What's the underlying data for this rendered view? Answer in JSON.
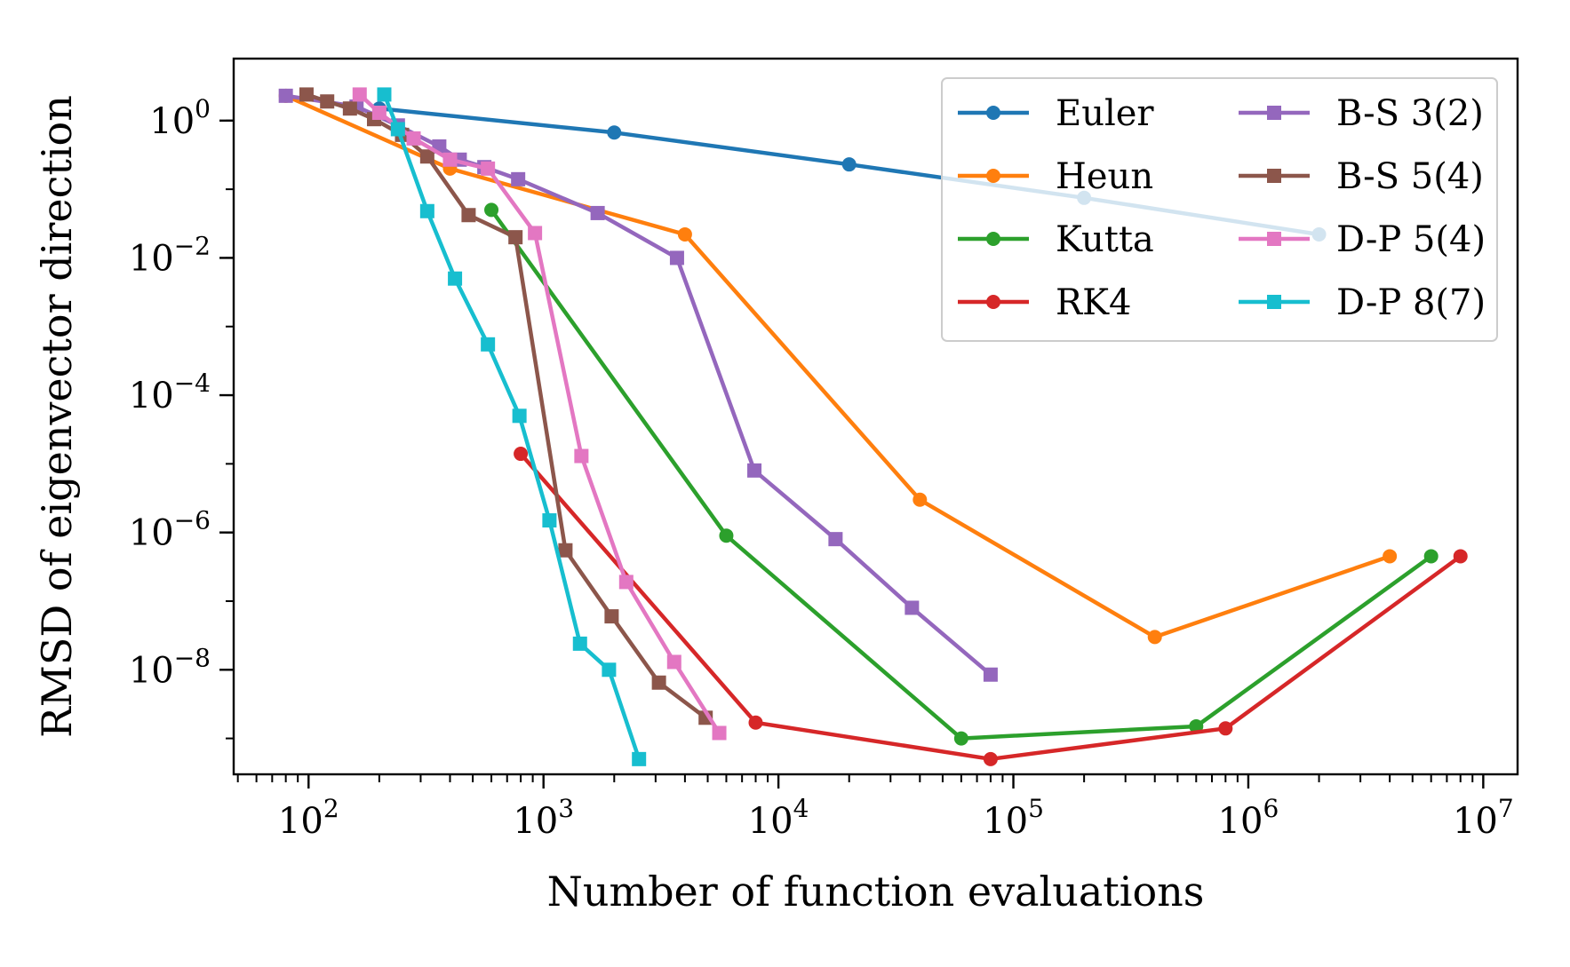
{
  "chart_data": {
    "type": "line",
    "title": "",
    "xlabel": "Number of function evaluations",
    "ylabel": "RMSD of eigenvector direction",
    "xscale": "log",
    "yscale": "log",
    "xlim": [
      48,
      14000000
    ],
    "ylim": [
      3e-10,
      8
    ],
    "x_ticks": [
      {
        "base": "10",
        "exp": "2",
        "value": 100
      },
      {
        "base": "10",
        "exp": "3",
        "value": 1000
      },
      {
        "base": "10",
        "exp": "4",
        "value": 10000
      },
      {
        "base": "10",
        "exp": "5",
        "value": 100000
      },
      {
        "base": "10",
        "exp": "6",
        "value": 1000000
      },
      {
        "base": "10",
        "exp": "7",
        "value": 10000000
      }
    ],
    "y_ticks": [
      {
        "base": "10",
        "exp": "0",
        "value": 1
      },
      {
        "base": "10",
        "exp": "−2",
        "value": 0.01
      },
      {
        "base": "10",
        "exp": "−4",
        "value": 0.0001
      },
      {
        "base": "10",
        "exp": "−6",
        "value": 1e-06
      },
      {
        "base": "10",
        "exp": "−8",
        "value": 1e-08
      }
    ],
    "grid": false,
    "legend": {
      "position": "top-right",
      "columns": 2
    },
    "series": [
      {
        "name": "Euler",
        "color": "#1f77b4",
        "marker": "circle",
        "points": [
          [
            200,
            1.5
          ],
          [
            2000,
            0.67
          ],
          [
            20000,
            0.23
          ],
          [
            200000,
            0.075
          ],
          [
            2000000,
            0.022
          ]
        ]
      },
      {
        "name": "Heun",
        "color": "#ff7f0e",
        "marker": "circle",
        "points": [
          [
            80,
            2.3
          ],
          [
            400,
            0.2
          ],
          [
            4000,
            0.022
          ],
          [
            40000,
            3e-06
          ],
          [
            400000,
            3e-08
          ],
          [
            4000000,
            4.5e-07
          ]
        ]
      },
      {
        "name": "Kutta",
        "color": "#2ca02c",
        "marker": "circle",
        "points": [
          [
            600,
            0.05
          ],
          [
            6000,
            9e-07
          ],
          [
            60000,
            1e-09
          ],
          [
            600000,
            1.5e-09
          ],
          [
            6000000,
            4.5e-07
          ]
        ]
      },
      {
        "name": "RK4",
        "color": "#d62728",
        "marker": "circle",
        "points": [
          [
            800,
            1.4e-05
          ],
          [
            8000,
            1.7e-09
          ],
          [
            80000,
            5e-10
          ],
          [
            800000,
            1.4e-09
          ],
          [
            8000000,
            4.5e-07
          ]
        ]
      },
      {
        "name": "B-S 3(2)",
        "color": "#9467bd",
        "marker": "square",
        "points": [
          [
            80,
            2.3
          ],
          [
            160,
            1.6
          ],
          [
            240,
            0.85
          ],
          [
            360,
            0.42
          ],
          [
            440,
            0.27
          ],
          [
            560,
            0.21
          ],
          [
            780,
            0.14
          ],
          [
            1700,
            0.045
          ],
          [
            3700,
            0.01
          ],
          [
            7900,
            8e-06
          ],
          [
            17500,
            8e-07
          ],
          [
            37000,
            8e-08
          ],
          [
            80000,
            8.5e-09
          ]
        ]
      },
      {
        "name": "B-S 5(4)",
        "color": "#8c564b",
        "marker": "square",
        "points": [
          [
            98,
            2.4
          ],
          [
            120,
            1.9
          ],
          [
            150,
            1.5
          ],
          [
            190,
            1.05
          ],
          [
            250,
            0.62
          ],
          [
            320,
            0.3
          ],
          [
            480,
            0.042
          ],
          [
            760,
            0.02
          ],
          [
            1240,
            5.5e-07
          ],
          [
            1950,
            6e-08
          ],
          [
            3100,
            6.5e-09
          ],
          [
            4900,
            2e-09
          ]
        ]
      },
      {
        "name": "D-P 5(4)",
        "color": "#e377c2",
        "marker": "square",
        "points": [
          [
            165,
            2.4
          ],
          [
            200,
            1.3
          ],
          [
            280,
            0.55
          ],
          [
            400,
            0.27
          ],
          [
            580,
            0.2
          ],
          [
            920,
            0.023
          ],
          [
            1450,
            1.3e-05
          ],
          [
            2250,
            1.9e-07
          ],
          [
            3600,
            1.3e-08
          ],
          [
            5600,
            1.2e-09
          ]
        ]
      },
      {
        "name": "D-P 8(7)",
        "color": "#17becf",
        "marker": "square",
        "points": [
          [
            210,
            2.4
          ],
          [
            240,
            0.75
          ],
          [
            320,
            0.048
          ],
          [
            420,
            0.005
          ],
          [
            580,
            0.00055
          ],
          [
            790,
            5e-05
          ],
          [
            1060,
            1.5e-06
          ],
          [
            1430,
            2.4e-08
          ],
          [
            1900,
            1e-08
          ],
          [
            2550,
            5e-10
          ]
        ]
      }
    ]
  }
}
